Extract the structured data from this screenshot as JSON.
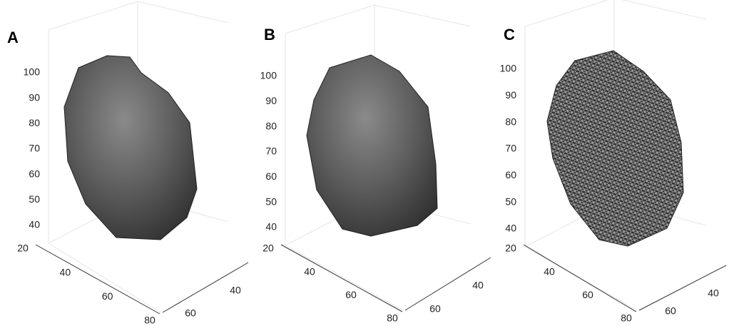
{
  "panels": [
    {
      "label": "A",
      "zticks": [
        "100",
        "90",
        "80",
        "70",
        "60",
        "50",
        "40"
      ],
      "xticks": [
        "20",
        "40",
        "60",
        "80"
      ],
      "yticks": [
        "60",
        "40"
      ]
    },
    {
      "label": "B",
      "zticks": [
        "100",
        "90",
        "80",
        "70",
        "60",
        "50",
        "40"
      ],
      "xticks": [
        "20",
        "40",
        "60",
        "80"
      ],
      "yticks": [
        "60",
        "40"
      ]
    },
    {
      "label": "C",
      "zticks": [
        "100",
        "90",
        "80",
        "70",
        "60",
        "50",
        "40"
      ],
      "xticks": [
        "20",
        "40",
        "60",
        "80"
      ],
      "yticks": [
        "60",
        "40"
      ]
    }
  ]
}
